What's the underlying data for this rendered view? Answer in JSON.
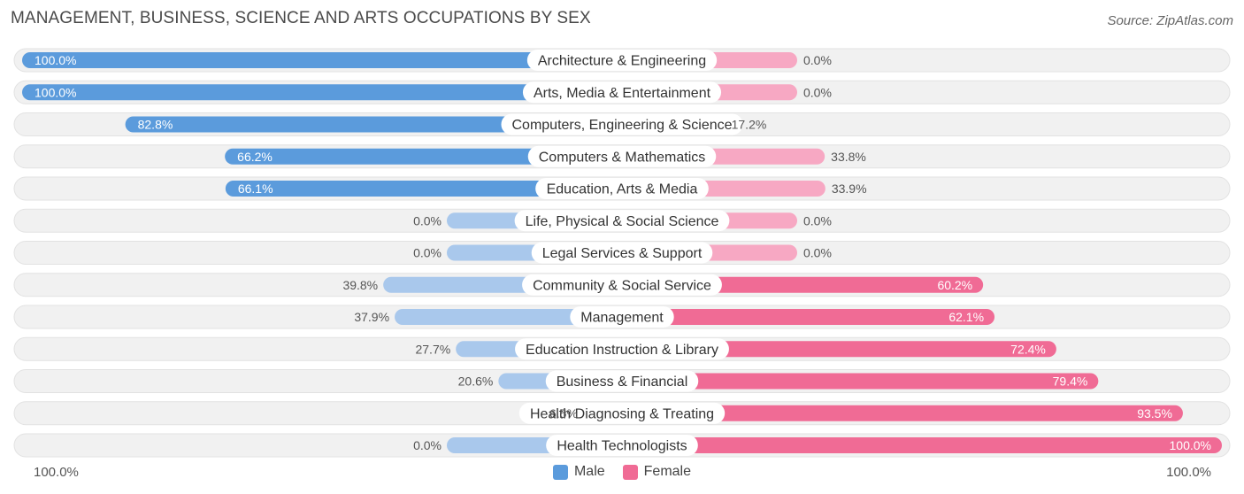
{
  "title": "MANAGEMENT, BUSINESS, SCIENCE AND ARTS OCCUPATIONS BY SEX",
  "source": "Source: ZipAtlas.com",
  "axis": {
    "left_label": "100.0%",
    "right_label": "100.0%"
  },
  "legend": {
    "male_label": "Male",
    "female_label": "Female"
  },
  "colors": {
    "male_strong": "#5b9bdc",
    "male_light": "#a9c8ec",
    "female_strong": "#f06b95",
    "female_light": "#f7a8c3",
    "track": "#f1f1f1"
  },
  "chart_data": {
    "type": "bar",
    "orientation": "horizontal-diverging",
    "categories": [
      "Architecture & Engineering",
      "Arts, Media & Entertainment",
      "Computers, Engineering & Science",
      "Computers & Mathematics",
      "Education, Arts & Media",
      "Life, Physical & Social Science",
      "Legal Services & Support",
      "Community & Social Service",
      "Management",
      "Education Instruction & Library",
      "Business & Financial",
      "Health Diagnosing & Treating",
      "Health Technologists"
    ],
    "series": [
      {
        "name": "Male",
        "values": [
          100.0,
          100.0,
          82.8,
          66.2,
          66.1,
          0.0,
          0.0,
          39.8,
          37.9,
          27.7,
          20.6,
          6.5,
          0.0
        ]
      },
      {
        "name": "Female",
        "values": [
          0.0,
          0.0,
          17.2,
          33.8,
          33.9,
          0.0,
          0.0,
          60.2,
          62.1,
          72.4,
          79.4,
          93.5,
          100.0
        ]
      }
    ],
    "labels_male": [
      "100.0%",
      "100.0%",
      "82.8%",
      "66.2%",
      "66.1%",
      "0.0%",
      "0.0%",
      "39.8%",
      "37.9%",
      "27.7%",
      "20.6%",
      "6.5%",
      "0.0%"
    ],
    "labels_female": [
      "0.0%",
      "0.0%",
      "17.2%",
      "33.8%",
      "33.9%",
      "0.0%",
      "0.0%",
      "60.2%",
      "62.1%",
      "72.4%",
      "79.4%",
      "93.5%",
      "100.0%"
    ],
    "xlim": [
      -100,
      100
    ],
    "legend_position": "bottom-center"
  }
}
